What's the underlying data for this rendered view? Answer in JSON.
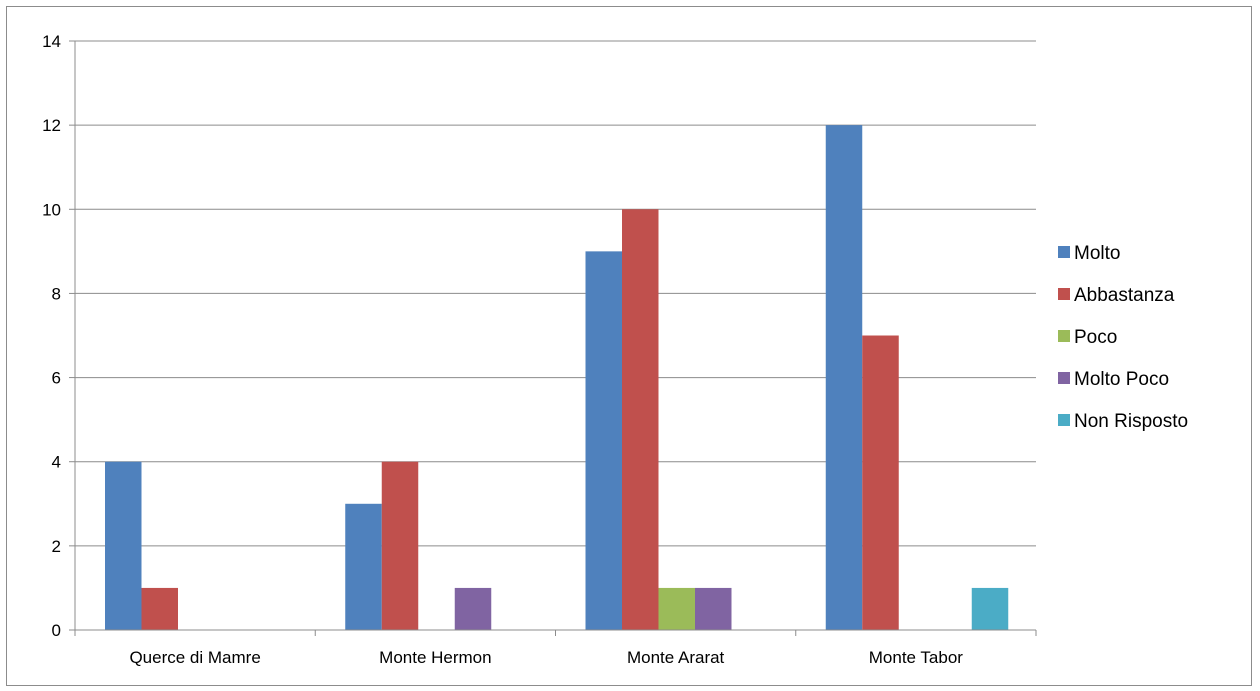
{
  "chart_data": {
    "type": "bar",
    "categories": [
      "Querce di Mamre",
      "Monte Hermon",
      "Monte Ararat",
      "Monte Tabor"
    ],
    "series": [
      {
        "name": "Molto",
        "color": "#4f81bd",
        "values": [
          4,
          3,
          9,
          12
        ]
      },
      {
        "name": "Abbastanza",
        "color": "#c0504d",
        "values": [
          1,
          4,
          10,
          7
        ]
      },
      {
        "name": "Poco",
        "color": "#9bbb59",
        "values": [
          0,
          0,
          1,
          0
        ]
      },
      {
        "name": "Molto Poco",
        "color": "#8064a2",
        "values": [
          0,
          1,
          1,
          0
        ]
      },
      {
        "name": "Non Risposto",
        "color": "#4bacc6",
        "values": [
          0,
          0,
          0,
          1
        ]
      }
    ],
    "ylim": [
      0,
      14
    ],
    "yticks": [
      0,
      2,
      4,
      6,
      8,
      10,
      12,
      14
    ],
    "grid": true,
    "legend_position": "right"
  }
}
